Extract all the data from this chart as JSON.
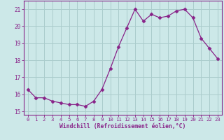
{
  "x": [
    0,
    1,
    2,
    3,
    4,
    5,
    6,
    7,
    8,
    9,
    10,
    11,
    12,
    13,
    14,
    15,
    16,
    17,
    18,
    19,
    20,
    21,
    22,
    23
  ],
  "y": [
    16.3,
    15.8,
    15.8,
    15.6,
    15.5,
    15.4,
    15.4,
    15.3,
    15.6,
    16.3,
    17.5,
    18.8,
    19.9,
    21.0,
    20.3,
    20.7,
    20.5,
    20.6,
    20.9,
    21.0,
    20.5,
    19.3,
    18.7,
    18.1
  ],
  "line_color": "#882288",
  "marker": "D",
  "marker_size": 2.5,
  "bg_color": "#cce8e8",
  "grid_color": "#aacccc",
  "xlabel": "Windchill (Refroidissement éolien,°C)",
  "ylim": [
    14.8,
    21.5
  ],
  "yticks": [
    15,
    16,
    17,
    18,
    19,
    20,
    21
  ],
  "xlim": [
    -0.5,
    23.5
  ],
  "xticks": [
    0,
    1,
    2,
    3,
    4,
    5,
    6,
    7,
    8,
    9,
    10,
    11,
    12,
    13,
    14,
    15,
    16,
    17,
    18,
    19,
    20,
    21,
    22,
    23
  ]
}
